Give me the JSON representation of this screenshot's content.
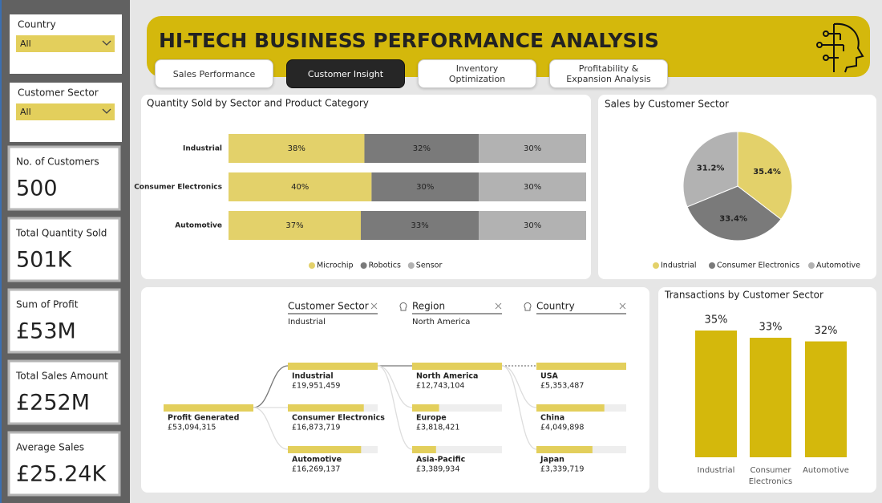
{
  "header": {
    "title": "HI-TECH BUSINESS PERFORMANCE ANALYSIS"
  },
  "tabs": {
    "items": [
      "Sales Performance",
      "Customer Insight",
      "Inventory Optimization",
      "Profitability & Expansion Analysis"
    ],
    "active": 1
  },
  "filters": [
    {
      "label": "Country",
      "value": "All"
    },
    {
      "label": "Customer Sector",
      "value": "All"
    }
  ],
  "kpis": [
    {
      "label": "No. of Customers",
      "value": "500"
    },
    {
      "label": "Total Quantity Sold",
      "value": "501K"
    },
    {
      "label": "Sum of Profit",
      "value": "£53M"
    },
    {
      "label": "Total Sales Amount",
      "value": "£252M"
    },
    {
      "label": "Average Sales",
      "value": "£25.24K"
    }
  ],
  "chart_data": [
    {
      "type": "stacked_bar",
      "title": "Quantity Sold by Sector and Product Category",
      "categories": [
        "Industrial",
        "Consumer Electronics",
        "Automotive"
      ],
      "series": [
        {
          "name": "Microchip",
          "color": "#e3d16a",
          "values": [
            38,
            40,
            37
          ],
          "value_labels": [
            "38%",
            "40%",
            "37%"
          ]
        },
        {
          "name": "Robotics",
          "color": "#7a7a7a",
          "values": [
            32,
            30,
            33
          ],
          "value_labels": [
            "32%",
            "30%",
            "33%"
          ]
        },
        {
          "name": "Sensor",
          "color": "#b2b2b2",
          "values": [
            30,
            30,
            30
          ],
          "value_labels": [
            "30%",
            "30%",
            "30%"
          ]
        }
      ],
      "legend": "bottom"
    },
    {
      "type": "pie",
      "title": "Sales by Customer Sector",
      "categories": [
        "Industrial",
        "Consumer Electronics",
        "Automotive"
      ],
      "values": [
        35.4,
        33.4,
        31.2
      ],
      "value_labels": [
        "35.4%",
        "33.4%",
        "31.2%"
      ],
      "colors": [
        "#e3d16a",
        "#7a7a7a",
        "#b2b2b2"
      ],
      "legend": "bottom"
    },
    {
      "type": "bar",
      "title": "Transactions by Customer Sector",
      "categories": [
        "Industrial",
        "Consumer Electronics",
        "Automotive"
      ],
      "values": [
        35,
        33,
        32
      ],
      "value_labels": [
        "35%",
        "33%",
        "32%"
      ],
      "color": "#d4b80c"
    }
  ],
  "decomposition_tree": {
    "root": {
      "label": "Profit Generated",
      "value": 53094315,
      "value_label": "£53,094,315"
    },
    "levels": [
      {
        "field": "Customer Sector",
        "selected": "Industrial",
        "nodes": [
          {
            "label": "Industrial",
            "value": 19951459,
            "value_label": "£19,951,459"
          },
          {
            "label": "Consumer Electronics",
            "value": 16873719,
            "value_label": "£16,873,719"
          },
          {
            "label": "Automotive",
            "value": 16269137,
            "value_label": "£16,269,137"
          }
        ]
      },
      {
        "field": "Region",
        "selected": "North America",
        "nodes": [
          {
            "label": "North America",
            "value": 12743104,
            "value_label": "£12,743,104"
          },
          {
            "label": "Europe",
            "value": 3818421,
            "value_label": "£3,818,421"
          },
          {
            "label": "Asia-Pacific",
            "value": 3389934,
            "value_label": "£3,389,934"
          }
        ]
      },
      {
        "field": "Country",
        "nodes": [
          {
            "label": "USA",
            "value": 5353487,
            "value_label": "£5,353,487"
          },
          {
            "label": "China",
            "value": 4049898,
            "value_label": "£4,049,898"
          },
          {
            "label": "Japan",
            "value": 3339719,
            "value_label": "£3,339,719"
          }
        ]
      }
    ]
  }
}
